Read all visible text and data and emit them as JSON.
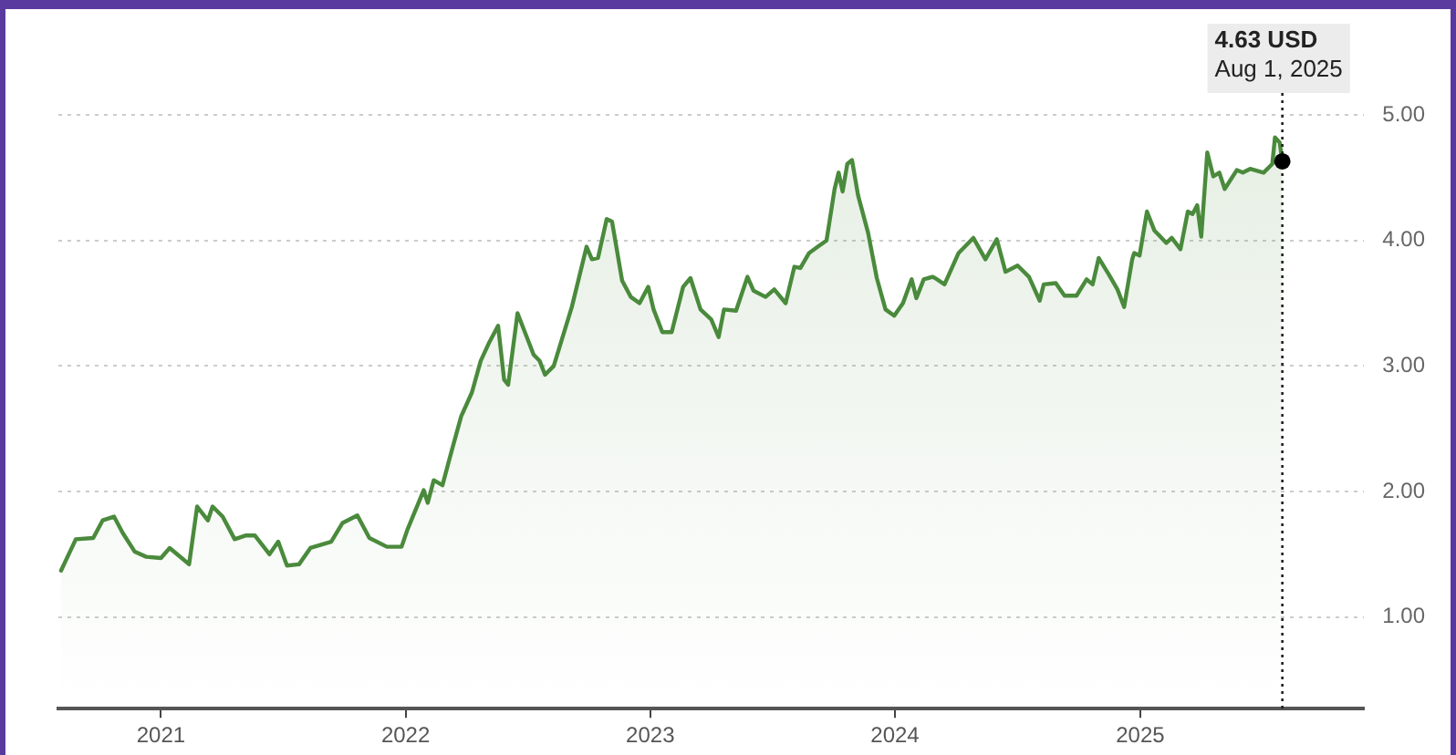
{
  "chart_data": {
    "type": "area",
    "x": [
      "2020-08-05",
      "2020-08-27",
      "2020-09-22",
      "2020-10-06",
      "2020-10-23",
      "2020-11-05",
      "2020-11-23",
      "2020-12-10",
      "2021-01-01",
      "2021-01-14",
      "2021-02-01",
      "2021-02-12",
      "2021-02-24",
      "2021-03-12",
      "2021-03-19",
      "2021-04-03",
      "2021-04-21",
      "2021-05-08",
      "2021-05-21",
      "2021-06-12",
      "2021-06-25",
      "2021-07-08",
      "2021-07-26",
      "2021-08-12",
      "2021-09-12",
      "2021-09-29",
      "2021-10-21",
      "2021-11-08",
      "2021-12-04",
      "2021-12-26",
      "2022-01-04",
      "2022-01-28",
      "2022-02-03",
      "2022-02-12",
      "2022-02-25",
      "2022-03-10",
      "2022-03-25",
      "2022-04-10",
      "2022-04-23",
      "2022-05-06",
      "2022-05-19",
      "2022-05-28",
      "2022-06-03",
      "2022-06-17",
      "2022-07-11",
      "2022-07-20",
      "2022-07-28",
      "2022-08-10",
      "2022-09-06",
      "2022-09-28",
      "2022-10-06",
      "2022-10-15",
      "2022-10-28",
      "2022-11-05",
      "2022-11-20",
      "2022-12-03",
      "2022-12-16",
      "2022-12-29",
      "2023-01-06",
      "2023-01-19",
      "2023-02-02",
      "2023-02-19",
      "2023-03-02",
      "2023-03-17",
      "2023-04-02",
      "2023-04-13",
      "2023-04-21",
      "2023-05-09",
      "2023-05-26",
      "2023-06-04",
      "2023-06-22",
      "2023-07-05",
      "2023-07-22",
      "2023-08-04",
      "2023-08-13",
      "2023-08-26",
      "2023-09-08",
      "2023-09-21",
      "2023-10-03",
      "2023-10-09",
      "2023-10-15",
      "2023-10-22",
      "2023-10-29",
      "2023-11-07",
      "2023-11-22",
      "2023-12-05",
      "2023-12-18",
      "2023-12-31",
      "2024-01-13",
      "2024-01-26",
      "2024-02-02",
      "2024-02-13",
      "2024-02-26",
      "2024-03-01",
      "2024-03-15",
      "2024-04-05",
      "2024-04-27",
      "2024-05-15",
      "2024-06-01",
      "2024-06-14",
      "2024-07-02",
      "2024-07-19",
      "2024-08-04",
      "2024-08-10",
      "2024-08-28",
      "2024-09-10",
      "2024-09-28",
      "2024-10-13",
      "2024-10-22",
      "2024-10-31",
      "2024-11-15",
      "2024-11-28",
      "2024-12-08",
      "2024-12-20",
      "2024-12-23",
      "2024-12-31",
      "2025-01-11",
      "2025-01-22",
      "2025-02-09",
      "2025-02-17",
      "2025-03-02",
      "2025-03-13",
      "2025-03-20",
      "2025-03-27",
      "2025-04-02",
      "2025-04-11",
      "2025-04-20",
      "2025-04-29",
      "2025-05-07",
      "2025-05-25",
      "2025-06-03",
      "2025-06-14",
      "2025-07-04",
      "2025-07-17",
      "2025-07-21",
      "2025-07-28",
      "2025-08-01"
    ],
    "series": [
      {
        "color": "#4a8a3c",
        "values": [
          1.37,
          1.62,
          1.63,
          1.77,
          1.8,
          1.67,
          1.52,
          1.48,
          1.47,
          1.55,
          1.47,
          1.42,
          1.88,
          1.77,
          1.88,
          1.8,
          1.62,
          1.65,
          1.65,
          1.5,
          1.6,
          1.41,
          1.42,
          1.55,
          1.6,
          1.75,
          1.81,
          1.63,
          1.56,
          1.56,
          1.7,
          2.01,
          1.91,
          2.09,
          2.05,
          2.31,
          2.6,
          2.79,
          3.04,
          3.19,
          3.32,
          2.89,
          2.85,
          3.42,
          3.09,
          3.04,
          2.93,
          3.0,
          3.47,
          3.95,
          3.85,
          3.86,
          4.17,
          4.15,
          3.68,
          3.55,
          3.5,
          3.63,
          3.45,
          3.27,
          3.27,
          3.63,
          3.7,
          3.45,
          3.37,
          3.23,
          3.45,
          3.44,
          3.71,
          3.6,
          3.55,
          3.61,
          3.5,
          3.79,
          3.78,
          3.9,
          3.95,
          4.0,
          4.41,
          4.54,
          4.39,
          4.61,
          4.64,
          4.36,
          4.06,
          3.7,
          3.45,
          3.4,
          3.5,
          3.69,
          3.54,
          3.69,
          3.71,
          3.7,
          3.65,
          3.9,
          4.02,
          3.85,
          4.01,
          3.75,
          3.8,
          3.71,
          3.52,
          3.65,
          3.66,
          3.56,
          3.56,
          3.69,
          3.65,
          3.86,
          3.73,
          3.61,
          3.47,
          3.85,
          3.9,
          3.88,
          4.23,
          4.08,
          3.98,
          4.02,
          3.93,
          4.23,
          4.21,
          4.28,
          4.03,
          4.7,
          4.51,
          4.54,
          4.41,
          4.56,
          4.54,
          4.57,
          4.54,
          4.61,
          4.82,
          4.78,
          4.63
        ]
      }
    ],
    "xlim": [
      "2020-08",
      "2025-12"
    ],
    "xticks": [
      "2021",
      "2022",
      "2023",
      "2024",
      "2025"
    ],
    "ylim": [
      0.27,
      5
    ],
    "yticks": [
      {
        "value": 1,
        "label": "1.00"
      },
      {
        "value": 2,
        "label": "2.00"
      },
      {
        "value": 3,
        "label": "3.00"
      },
      {
        "value": 4,
        "label": "4.00"
      },
      {
        "value": 5,
        "label": "5.00"
      }
    ],
    "grid": "y",
    "line_style": "solid",
    "marker": "none",
    "legend": false,
    "ref_lines": [
      {
        "axis": "x",
        "value": "2025-08-01",
        "line_style": "dotted",
        "color": "#222222"
      }
    ],
    "annotations": [
      "4.63 USD",
      "Aug 1, 2025"
    ]
  }
}
